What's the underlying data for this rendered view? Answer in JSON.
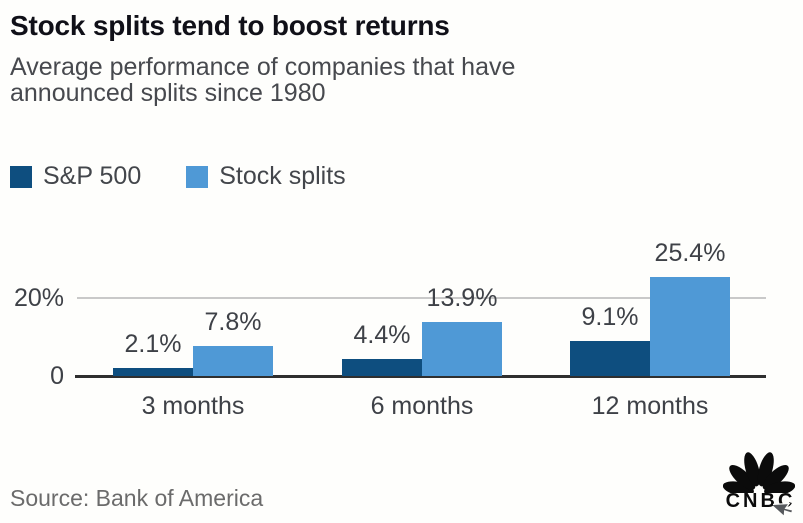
{
  "header": {
    "title": "Stock splits tend to boost returns",
    "subtitle": "Average performance of companies that have announced splits since 1980"
  },
  "legend": {
    "items": [
      {
        "label": "S&P 500",
        "color": "#0e4e7f"
      },
      {
        "label": "Stock splits",
        "color": "#4f99d6"
      }
    ]
  },
  "chart_data": {
    "type": "bar",
    "categories": [
      "3 months",
      "6 months",
      "12 months"
    ],
    "series": [
      {
        "name": "S&P 500",
        "color": "#0e4e7f",
        "values": [
          2.1,
          4.4,
          9.1
        ]
      },
      {
        "name": "Stock splits",
        "color": "#4f99d6",
        "values": [
          7.8,
          13.9,
          25.4
        ]
      }
    ],
    "value_label_format": "percent-one-decimal",
    "value_labels": [
      [
        "2.1%",
        "4.4%",
        "9.1%"
      ],
      [
        "7.8%",
        "13.9%",
        "25.4%"
      ]
    ],
    "yticks": [
      {
        "value": 0,
        "label": "0"
      },
      {
        "value": 20,
        "label": "20%"
      }
    ],
    "ylim": [
      0,
      27
    ],
    "xlabel": "",
    "ylabel": "",
    "grid": "single-horizontal-gridline-at-20",
    "legend_position": "top-left",
    "axis_color": "#2f2f2f",
    "gridline_color": "#c9c9c9"
  },
  "footer": {
    "source": "Source: Bank of America",
    "logo_text": "CNBC"
  },
  "colors": {
    "background": "#fefefc",
    "title": "#101018",
    "subtitle": "#47494e",
    "labels": "#3e4147",
    "source": "#6b6b6b",
    "logo": "#0b0b0b"
  }
}
